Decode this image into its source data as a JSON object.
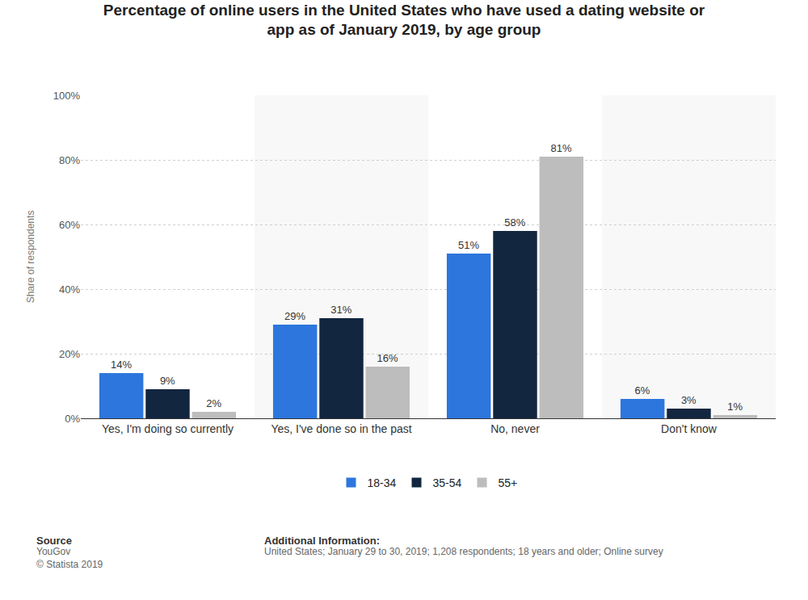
{
  "chart_data": {
    "type": "bar",
    "title": "Percentage of online users in the United States who have used a dating website or app as of January 2019, by age group",
    "y_label": "Share of respondents",
    "categories": [
      "Yes, I'm doing so currently",
      "Yes, I've done so in the past",
      "No, never",
      "Don't know"
    ],
    "series": [
      {
        "name": "18-34",
        "color": "#2d76dd",
        "values": [
          14,
          29,
          51,
          6
        ],
        "value_labels": [
          "14%",
          "29%",
          "51%",
          "6%"
        ]
      },
      {
        "name": "35-54",
        "color": "#13263f",
        "values": [
          9,
          31,
          58,
          3
        ],
        "value_labels": [
          "9%",
          "31%",
          "58%",
          "3%"
        ]
      },
      {
        "name": "55+",
        "color": "#bdbdbd",
        "values": [
          2,
          16,
          81,
          1
        ],
        "value_labels": [
          "2%",
          "16%",
          "81%",
          "1%"
        ]
      }
    ],
    "ylim": [
      0,
      100
    ],
    "yticks": [
      {
        "value": 0,
        "label": "0%"
      },
      {
        "value": 20,
        "label": "20%"
      },
      {
        "value": 40,
        "label": "40%"
      },
      {
        "value": 60,
        "label": "60%"
      },
      {
        "value": 80,
        "label": "80%"
      },
      {
        "value": 100,
        "label": "100%"
      }
    ],
    "grid": true,
    "legend": "bottom",
    "data_labels": true,
    "annotations": {
      "source_title": "Source",
      "source": [
        "YouGov",
        "© Statista 2019"
      ],
      "info_title": "Additional Information:",
      "info": "United States; January 29 to 30, 2019; 1,208 respondents; 18 years and older; Online survey"
    }
  }
}
